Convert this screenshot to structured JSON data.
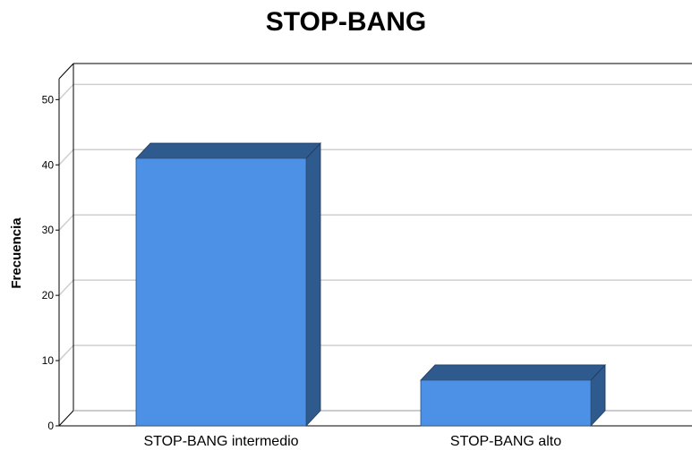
{
  "chart_data": {
    "type": "bar",
    "title": "STOP-BANG",
    "xlabel": "",
    "ylabel": "Frecuencia",
    "categories": [
      "STOP-BANG intermedio",
      "STOP-BANG alto"
    ],
    "values": [
      41,
      7
    ],
    "ylim": [
      0,
      50
    ],
    "yticks": [
      "0",
      "10",
      "20",
      "30",
      "40",
      "50"
    ],
    "grid": true,
    "style": "3d",
    "colors": {
      "bar_front": "#4d91e6",
      "bar_top": "#2f5a8e",
      "bar_side": "#2f5a8e",
      "grid": "#cfcfcf",
      "axis": "#000000"
    }
  }
}
